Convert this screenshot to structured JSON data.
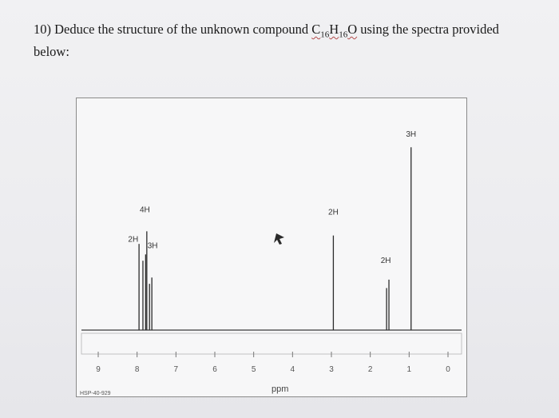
{
  "question": {
    "prefix": "10) Deduce the structure of the unknown compound ",
    "formula": {
      "c": "C",
      "c_sub": "16",
      "h": "H",
      "h_sub": "16",
      "o": "O"
    },
    "suffix": " using the spectra provided below:"
  },
  "chart_data": {
    "type": "line",
    "title": "",
    "xlabel": "ppm",
    "ylabel": "",
    "xlim": [
      9.0,
      0.0
    ],
    "x_ticks": [
      "9",
      "8",
      "7",
      "6",
      "5",
      "4",
      "3",
      "2",
      "1",
      "0"
    ],
    "peaks": [
      {
        "ppm": 7.95,
        "height": 0.41,
        "integration": "2H"
      },
      {
        "ppm": 7.85,
        "height": 0.33
      },
      {
        "ppm": 7.78,
        "height": 0.36,
        "integration": "4H"
      },
      {
        "ppm": 7.75,
        "height": 0.47
      },
      {
        "ppm": 7.68,
        "height": 0.22,
        "integration": "3H"
      },
      {
        "ppm": 7.62,
        "height": 0.25
      },
      {
        "ppm": 2.95,
        "height": 0.45,
        "integration": "2H"
      },
      {
        "ppm": 1.58,
        "height": 0.2,
        "integration": "2H"
      },
      {
        "ppm": 1.52,
        "height": 0.24
      },
      {
        "ppm": 0.95,
        "height": 0.87,
        "integration": "3H"
      }
    ],
    "integration_labels": [
      {
        "text": "2H",
        "ppm": 8.1,
        "level": 0.42
      },
      {
        "text": "4H",
        "ppm": 7.8,
        "level": 0.56
      },
      {
        "text": "3H",
        "ppm": 7.6,
        "level": 0.39
      },
      {
        "text": "2H",
        "ppm": 2.95,
        "level": 0.55
      },
      {
        "text": "2H",
        "ppm": 1.6,
        "level": 0.32
      },
      {
        "text": "3H",
        "ppm": 0.95,
        "level": 0.92
      }
    ],
    "spectrum_code": "HSP-40-929"
  }
}
